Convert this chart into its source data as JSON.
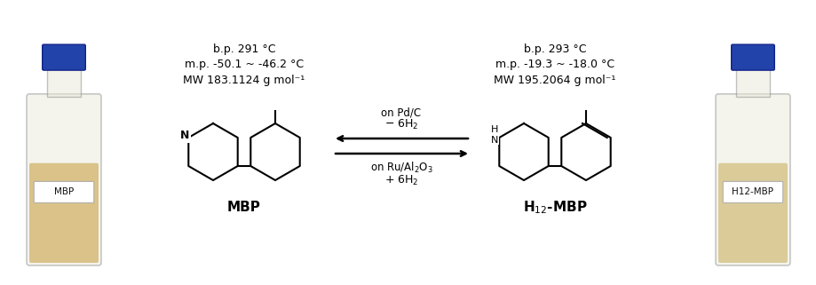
{
  "bg_color": "#ffffff",
  "title": "",
  "left_bottle_label": "MBP",
  "right_bottle_label": "H12-MBP",
  "mbp_label": "MBP",
  "h12_label": "H$_{12}$-MBP",
  "arrow_top_line1": "+ 6H",
  "arrow_top_line2": "on Ru/Al",
  "arrow_top_subscripts": "2",
  "arrow_bottom_line1": "- 6H",
  "arrow_bottom_line2": "on Pd/C",
  "mbp_mw": "MW 183.1124 g mol",
  "mbp_mp": "m.p. -50.1 ~ -46.2 °C",
  "mbp_bp": "b.p. 291 °C",
  "h12_mw": "MW 195.2064 g mol",
  "h12_mp": "m.p. -19.3 ~ -18.0 °C",
  "h12_bp": "b.p. 293 °C",
  "bottle_liquid_color_left": "#c8942a",
  "bottle_liquid_color_right": "#c8a84b",
  "bottle_glass_color": "#e8dfc0",
  "bottle_cap_color": "#2244aa",
  "text_color": "#111111"
}
